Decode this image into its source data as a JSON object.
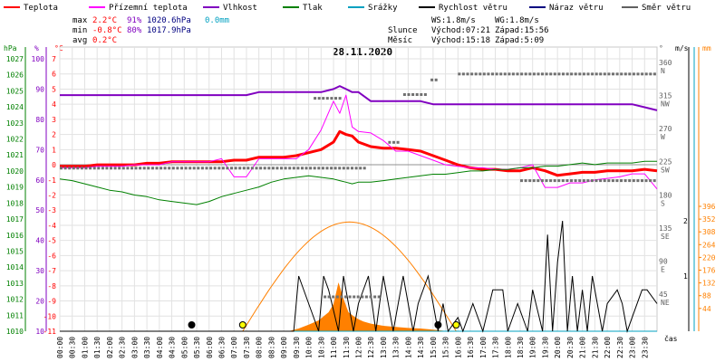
{
  "chart_data": {
    "type": "line",
    "title": "28.11.2020",
    "xlabel": "čas",
    "legend": {
      "placement": "top",
      "items": [
        {
          "label": "Teplota",
          "color": "#ff0000"
        },
        {
          "label": "Přízemní teplota",
          "color": "#ff00ff"
        },
        {
          "label": "Vlhkost",
          "color": "#8000c0"
        },
        {
          "label": "Tlak",
          "color": "#008000"
        },
        {
          "label": "Srážky",
          "color": "#00a0c0"
        },
        {
          "label": "Rychlost větru",
          "color": "#000000"
        },
        {
          "label": "Náraz větru",
          "color": "#000080"
        },
        {
          "label": "Směr větru",
          "color": "#606060"
        }
      ]
    },
    "stats": {
      "max_label": "max",
      "min_label": "min",
      "avg_label": "avg",
      "max_temp": "2.2°C",
      "max_hum": "91%",
      "max_press": "1020.6hPa",
      "max_rain": "0.0mm",
      "min_temp": "-0.8°C",
      "min_hum": "80%",
      "min_press": "1017.9hPa",
      "avg_temp": "0.2°C",
      "ws": "WS:1.8m/s",
      "wg": "WG:1.8m/s",
      "sun_label": "Slunce",
      "sunrise": "Východ:07:21",
      "sunset": "Západ:15:56",
      "moon_label": "Měsíc",
      "moonrise": "Východ:15:18",
      "moonset": "Západ:5:09"
    },
    "axes": {
      "hpa": {
        "label": "hPa",
        "range": [
          1010,
          1027
        ],
        "ticks": [
          1010,
          1011,
          1012,
          1013,
          1014,
          1015,
          1016,
          1017,
          1018,
          1019,
          1020,
          1021,
          1022,
          1023,
          1024,
          1025,
          1026,
          1027
        ]
      },
      "pct": {
        "label": "%",
        "ticks": [
          10,
          20,
          30,
          40,
          50,
          60,
          70,
          80,
          90,
          100
        ]
      },
      "temp": {
        "label": "°C",
        "range": [
          -11,
          7
        ],
        "ticks": [
          -11,
          -10,
          -9,
          -8,
          -7,
          -6,
          -5,
          -4,
          -3,
          -2,
          -1,
          0,
          1,
          2,
          3,
          4,
          5,
          6,
          7
        ]
      },
      "dir": {
        "label": "°",
        "ticks": [
          "360",
          "315",
          "270",
          "225",
          "180",
          "135",
          "90",
          "45"
        ],
        "compass": [
          "N",
          "NW",
          "W",
          "SW",
          "S",
          "SE",
          "E",
          "NE"
        ]
      },
      "ms": {
        "label": "m/s",
        "ticks": [
          "2",
          "1"
        ]
      },
      "mm": {
        "label": "mm",
        "ticks": [
          "396",
          "352",
          "308",
          "264",
          "220",
          "176",
          "132",
          "88",
          "44"
        ]
      },
      "time_ticks": [
        "00:00",
        "00:30",
        "01:00",
        "01:30",
        "02:00",
        "02:30",
        "03:00",
        "03:30",
        "04:00",
        "04:30",
        "05:00",
        "05:30",
        "06:00",
        "06:30",
        "07:00",
        "07:30",
        "08:00",
        "08:30",
        "09:00",
        "09:30",
        "10:00",
        "10:30",
        "11:00",
        "11:30",
        "12:00",
        "12:30",
        "13:00",
        "13:30",
        "14:00",
        "14:30",
        "15:00",
        "15:30",
        "16:00",
        "16:30",
        "17:00",
        "17:30",
        "18:00",
        "18:30",
        "19:00",
        "19:30",
        "20:00",
        "20:30",
        "21:00",
        "21:30",
        "22:00",
        "22:30",
        "23:00",
        "23:30"
      ]
    },
    "x_hours": [
      0,
      0.5,
      1,
      1.5,
      2,
      2.5,
      3,
      3.5,
      4,
      4.5,
      5,
      5.5,
      6,
      6.5,
      7,
      7.5,
      8,
      8.5,
      9,
      9.5,
      10,
      10.5,
      11,
      11.25,
      11.5,
      11.75,
      12,
      12.5,
      13,
      13.5,
      14,
      14.5,
      15,
      15.5,
      16,
      16.5,
      17,
      17.5,
      18,
      18.5,
      19,
      19.5,
      20,
      20.5,
      21,
      21.5,
      22,
      22.5,
      23,
      23.5,
      24
    ],
    "series": [
      {
        "name": "Teplota",
        "unit": "°C",
        "color": "#ff0000",
        "width": 3,
        "values": [
          -0.1,
          -0.1,
          -0.1,
          0,
          0,
          0,
          0,
          0.1,
          0.1,
          0.2,
          0.2,
          0.2,
          0.2,
          0.2,
          0.3,
          0.3,
          0.5,
          0.5,
          0.5,
          0.6,
          0.8,
          1,
          1.5,
          2.2,
          2,
          1.9,
          1.5,
          1.2,
          1.1,
          1.1,
          1,
          0.9,
          0.6,
          0.3,
          0,
          -0.2,
          -0.3,
          -0.3,
          -0.4,
          -0.4,
          -0.2,
          -0.4,
          -0.7,
          -0.6,
          -0.5,
          -0.5,
          -0.4,
          -0.4,
          -0.4,
          -0.3,
          -0.4
        ]
      },
      {
        "name": "Přízemní teplota",
        "unit": "°C",
        "color": "#ff00ff",
        "width": 1,
        "values": [
          -0.2,
          -0.2,
          -0.2,
          -0.1,
          -0.1,
          -0.1,
          0,
          0,
          0,
          0.2,
          0.2,
          0.2,
          0.2,
          0.4,
          -0.8,
          -0.8,
          0.4,
          0.4,
          0.4,
          0.4,
          1,
          2.3,
          4.2,
          3.4,
          4.6,
          2.5,
          2.2,
          2.1,
          1.6,
          0.9,
          0.9,
          0.6,
          0.3,
          0,
          -0.1,
          -0.2,
          -0.2,
          -0.3,
          -0.3,
          -0.2,
          0,
          -1.5,
          -1.5,
          -1.2,
          -1.2,
          -1,
          -0.9,
          -0.8,
          -0.6,
          -0.6,
          -1.6
        ]
      },
      {
        "name": "Vlhkost",
        "unit": "%",
        "color": "#8000c0",
        "width": 2,
        "values": [
          88,
          88,
          88,
          88,
          88,
          88,
          88,
          88,
          88,
          88,
          88,
          88,
          88,
          88,
          88,
          88,
          89,
          89,
          89,
          89,
          89,
          89,
          90,
          91,
          90,
          89,
          89,
          86,
          86,
          86,
          86,
          86,
          85,
          85,
          85,
          85,
          85,
          85,
          85,
          85,
          85,
          85,
          85,
          85,
          85,
          85,
          85,
          85,
          85,
          84,
          83
        ]
      },
      {
        "name": "Tlak",
        "unit": "hPa",
        "color": "#008000",
        "width": 1,
        "values": [
          1019.5,
          1019.4,
          1019.2,
          1019.0,
          1018.8,
          1018.7,
          1018.5,
          1018.4,
          1018.2,
          1018.1,
          1018.0,
          1017.9,
          1018.1,
          1018.4,
          1018.6,
          1018.8,
          1019.0,
          1019.3,
          1019.5,
          1019.6,
          1019.7,
          1019.6,
          1019.5,
          1019.4,
          1019.3,
          1019.2,
          1019.3,
          1019.3,
          1019.4,
          1019.5,
          1019.6,
          1019.7,
          1019.8,
          1019.8,
          1019.9,
          1020.0,
          1020.0,
          1020.1,
          1020.1,
          1020.2,
          1020.2,
          1020.3,
          1020.3,
          1020.4,
          1020.5,
          1020.4,
          1020.5,
          1020.5,
          1020.5,
          1020.6,
          1020.6
        ]
      },
      {
        "name": "Srážky",
        "unit": "mm",
        "color": "#00a0c0",
        "width": 1,
        "values": [
          0,
          0,
          0,
          0,
          0,
          0,
          0,
          0,
          0,
          0,
          0,
          0,
          0,
          0,
          0,
          0,
          0,
          0,
          0,
          0,
          0,
          0,
          0,
          0,
          0,
          0,
          0,
          0,
          0,
          0,
          0,
          0,
          0,
          0,
          0,
          0,
          0,
          0,
          0,
          0,
          0,
          0,
          0,
          0,
          0,
          0,
          0,
          0,
          0,
          0,
          0
        ]
      }
    ],
    "wind_speed": {
      "name": "Rychlost větru",
      "unit": "m/s",
      "x": [
        0,
        9.4,
        9.6,
        10.4,
        10.6,
        10.8,
        11.2,
        11.4,
        11.8,
        12,
        12.4,
        12.7,
        13,
        13.4,
        13.8,
        14.2,
        14.4,
        14.8,
        15.2,
        15.4,
        15.6,
        16,
        16.2,
        16.6,
        17,
        17.4,
        17.8,
        18,
        18.4,
        18.8,
        19,
        19.4,
        19.6,
        19.8,
        20,
        20.2,
        20.4,
        20.6,
        20.8,
        21,
        21.2,
        21.4,
        21.8,
        22,
        22.4,
        22.6,
        22.8,
        23,
        23.4,
        23.6,
        24
      ],
      "values": [
        0,
        0,
        0.4,
        0,
        0.4,
        0.3,
        0,
        0.4,
        0,
        0.2,
        0.4,
        0,
        0.4,
        0,
        0.4,
        0,
        0.2,
        0.4,
        0,
        0.2,
        0,
        0.1,
        0,
        0.2,
        0,
        0.3,
        0.3,
        0,
        0.2,
        0,
        0.3,
        0,
        0.7,
        0,
        0.5,
        0.8,
        0,
        0.4,
        0,
        0.3,
        0,
        0.4,
        0,
        0.2,
        0.3,
        0.2,
        0,
        0.1,
        0.3,
        0.3,
        0.2
      ]
    },
    "sun_elevation": {
      "rise": 7.35,
      "set": 15.93,
      "max_deg": 17
    },
    "wind_direction": {
      "name": "Směr větru",
      "segments": [
        {
          "from": 0,
          "to": 12.2,
          "deg": 220
        },
        {
          "from": 10.2,
          "to": 11.3,
          "deg": 315
        },
        {
          "from": 13.8,
          "to": 14.8,
          "deg": 320
        },
        {
          "from": 13.2,
          "to": 13.6,
          "deg": 255
        },
        {
          "from": 14.9,
          "to": 15.2,
          "deg": 340
        },
        {
          "from": 16,
          "to": 24,
          "deg": 348
        },
        {
          "from": 18.5,
          "to": 24,
          "deg": 203
        },
        {
          "from": 10.6,
          "to": 12.8,
          "deg": 45
        }
      ]
    },
    "moon_markers": [
      5.3,
      15.2
    ],
    "sun_markers": [
      7.35,
      15.93
    ]
  }
}
